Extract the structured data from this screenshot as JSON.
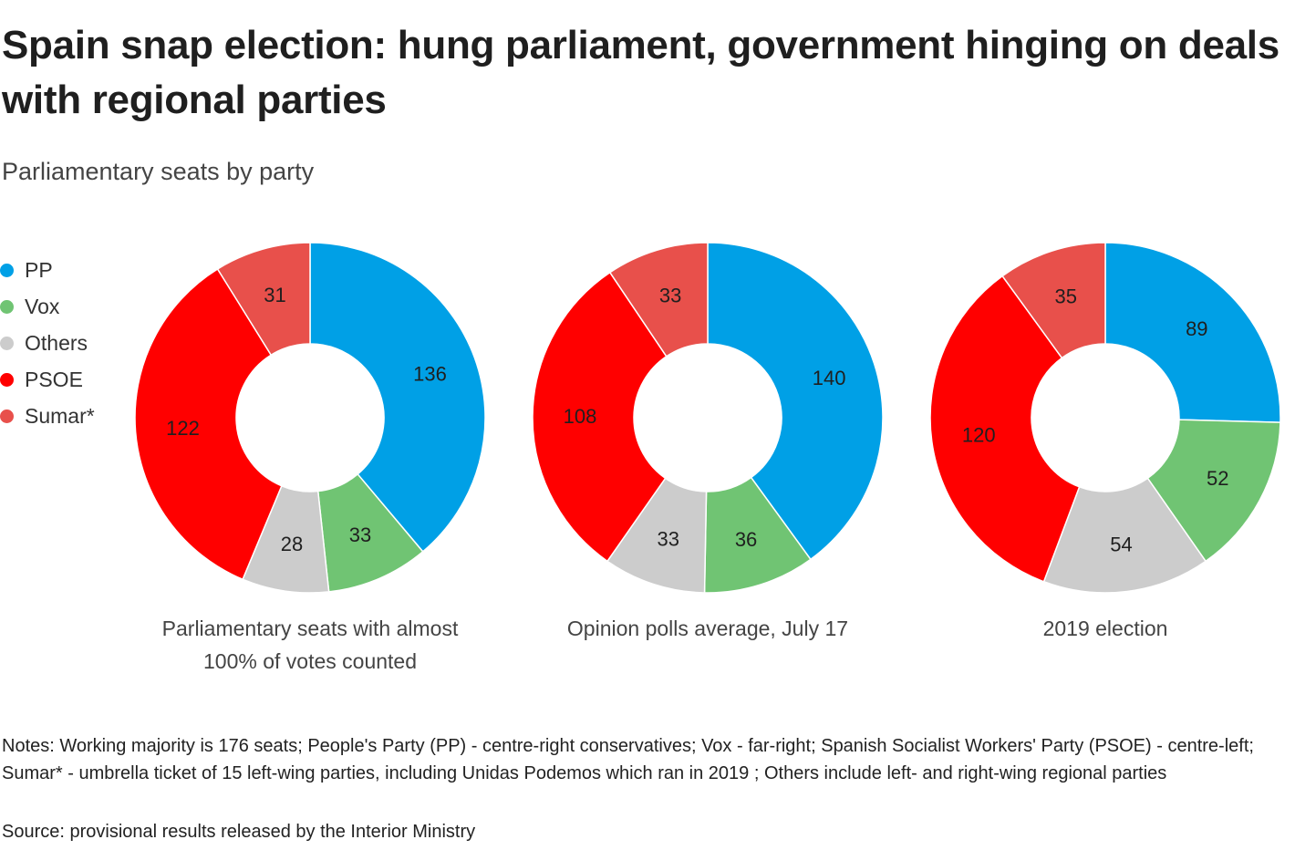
{
  "title": "Spain snap election: hung parliament, government hinging on deals with regional parties",
  "subtitle": "Parliamentary seats by party",
  "legend": [
    {
      "label": "PP",
      "color": "#00a0e6"
    },
    {
      "label": "Vox",
      "color": "#70c473"
    },
    {
      "label": "Others",
      "color": "#cccccc"
    },
    {
      "label": "PSOE",
      "color": "#ff0000"
    },
    {
      "label": "Sumar*",
      "color": "#e8504b"
    }
  ],
  "chart_data": [
    {
      "type": "pie",
      "variant": "donut",
      "caption": [
        "Parliamentary seats with almost",
        "100% of votes counted"
      ],
      "categories": [
        "PP",
        "Vox",
        "Others",
        "PSOE",
        "Sumar*"
      ],
      "values": [
        136,
        33,
        28,
        122,
        31
      ]
    },
    {
      "type": "pie",
      "variant": "donut",
      "caption": [
        "Opinion polls average, July 17"
      ],
      "categories": [
        "PP",
        "Vox",
        "Others",
        "PSOE",
        "Sumar*"
      ],
      "values": [
        140,
        36,
        33,
        108,
        33
      ]
    },
    {
      "type": "pie",
      "variant": "donut",
      "caption": [
        "2019 election"
      ],
      "categories": [
        "PP",
        "Vox",
        "Others",
        "PSOE",
        "Sumar*"
      ],
      "values": [
        89,
        52,
        54,
        120,
        35
      ]
    }
  ],
  "notes": "Notes: Working majority is 176 seats; People's Party (PP) - centre-right conservatives; Vox - far-right; Spanish Socialist Workers' Party (PSOE) - centre-left; Sumar* - umbrella ticket of 15 left-wing parties, including Unidas Podemos which ran in 2019 ; Others include left- and right-wing regional parties",
  "source": "Source: provisional results released by the Interior Ministry"
}
